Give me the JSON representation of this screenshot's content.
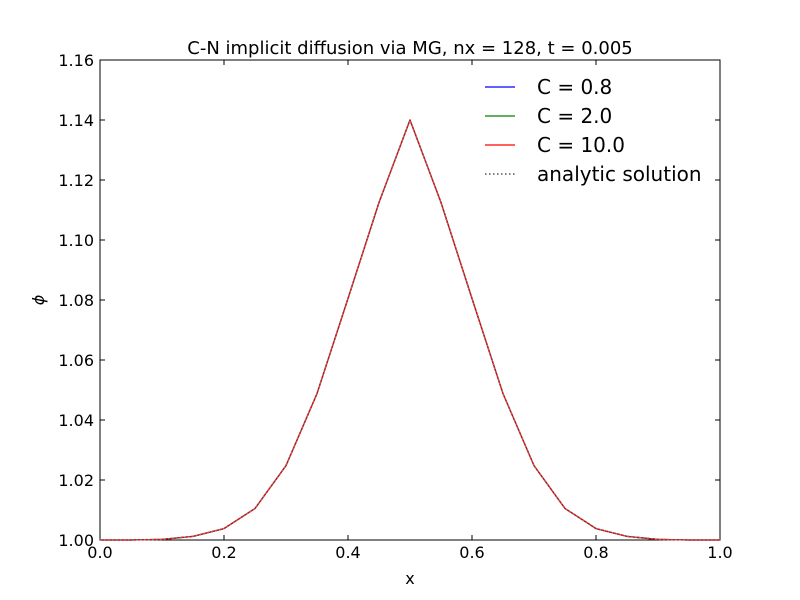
{
  "chart_data": {
    "type": "line",
    "title": "C-N implicit diffusion via MG, nx = 128, t = 0.005",
    "xlabel": "x",
    "ylabel": "ϕ",
    "xlim": [
      0.0,
      1.0
    ],
    "ylim": [
      1.0,
      1.16
    ],
    "x_ticks": [
      "0.0",
      "0.2",
      "0.4",
      "0.6",
      "0.8",
      "1.0"
    ],
    "y_ticks": [
      "1.00",
      "1.02",
      "1.04",
      "1.06",
      "1.08",
      "1.10",
      "1.12",
      "1.14",
      "1.16"
    ],
    "grid": false,
    "legend_position": "top-right",
    "x": [
      0.0,
      0.05,
      0.1,
      0.15,
      0.2,
      0.25,
      0.3,
      0.35,
      0.4,
      0.45,
      0.5,
      0.55,
      0.6,
      0.65,
      0.7,
      0.75,
      0.8,
      0.85,
      0.9,
      0.95,
      1.0
    ],
    "series": [
      {
        "name": "C = 0.8",
        "color": "#0000ff",
        "style": "solid",
        "values": [
          1.0,
          1.0,
          1.0002,
          1.0012,
          1.0038,
          1.0105,
          1.0248,
          1.0488,
          1.0805,
          1.1125,
          1.14,
          1.1125,
          1.0805,
          1.0488,
          1.0248,
          1.0105,
          1.0038,
          1.0012,
          1.0002,
          1.0,
          1.0
        ]
      },
      {
        "name": "C = 2.0",
        "color": "#008000",
        "style": "solid",
        "values": [
          1.0,
          1.0,
          1.0002,
          1.0012,
          1.0038,
          1.0105,
          1.0248,
          1.0488,
          1.0805,
          1.1125,
          1.14,
          1.1125,
          1.0805,
          1.0488,
          1.0248,
          1.0105,
          1.0038,
          1.0012,
          1.0002,
          1.0,
          1.0
        ]
      },
      {
        "name": "C = 10.0",
        "color": "#ff0000",
        "style": "solid",
        "values": [
          1.0,
          1.0,
          1.0002,
          1.0012,
          1.0038,
          1.0105,
          1.0248,
          1.0488,
          1.0805,
          1.1125,
          1.14,
          1.1125,
          1.0805,
          1.0488,
          1.0248,
          1.0105,
          1.0038,
          1.0012,
          1.0002,
          1.0,
          1.0
        ]
      },
      {
        "name": "analytic solution",
        "color": "#808080",
        "style": "dotted",
        "values": [
          1.0,
          1.0,
          1.0002,
          1.0012,
          1.0038,
          1.0105,
          1.0248,
          1.0488,
          1.0805,
          1.1125,
          1.14,
          1.1125,
          1.0805,
          1.0488,
          1.0248,
          1.0105,
          1.0038,
          1.0012,
          1.0002,
          1.0,
          1.0
        ]
      }
    ]
  }
}
